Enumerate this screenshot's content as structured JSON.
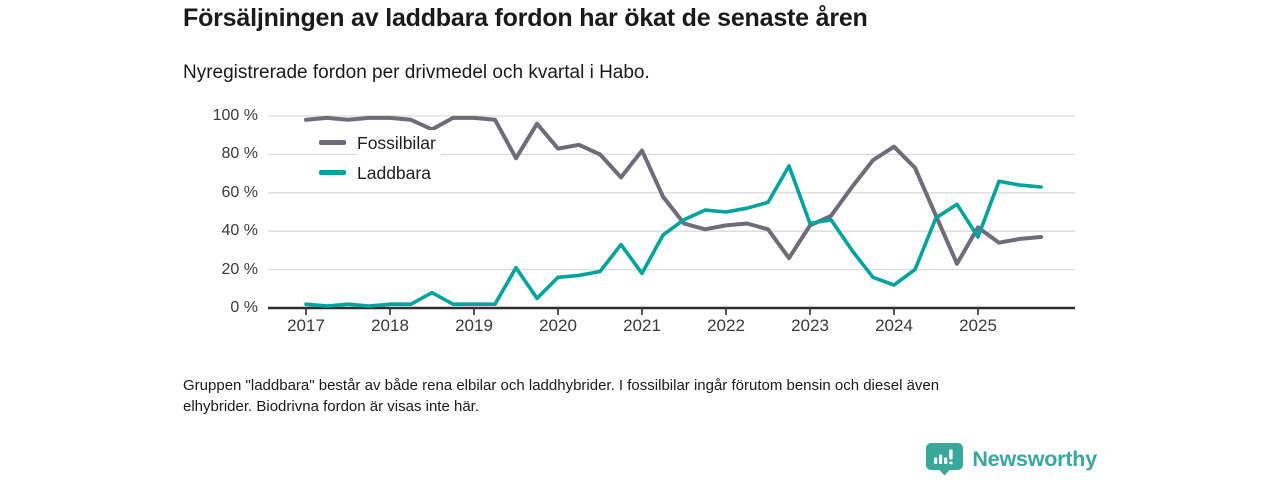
{
  "header": {
    "title": "Försäljningen av laddbara fordon har ökat de senaste åren",
    "subtitle": "Nyregistrerade fordon per drivmedel och kvartal i Habo."
  },
  "chart_data": {
    "type": "line",
    "x": [
      "2017-Q1",
      "2017-Q2",
      "2017-Q3",
      "2017-Q4",
      "2018-Q1",
      "2018-Q2",
      "2018-Q3",
      "2018-Q4",
      "2019-Q1",
      "2019-Q2",
      "2019-Q3",
      "2019-Q4",
      "2020-Q1",
      "2020-Q2",
      "2020-Q3",
      "2020-Q4",
      "2021-Q1",
      "2021-Q2",
      "2021-Q3",
      "2021-Q4",
      "2022-Q1",
      "2022-Q2",
      "2022-Q3",
      "2022-Q4",
      "2023-Q1",
      "2023-Q2",
      "2023-Q3",
      "2023-Q4",
      "2024-Q1",
      "2024-Q2",
      "2024-Q3",
      "2024-Q4",
      "2025-Q1",
      "2025-Q2",
      "2025-Q3",
      "2025-Q4"
    ],
    "series": [
      {
        "name": "Fossilbilar",
        "color": "#6f6b77",
        "values": [
          98,
          99,
          98,
          99,
          99,
          98,
          93,
          99,
          99,
          98,
          78,
          96,
          83,
          85,
          80,
          68,
          82,
          58,
          44,
          41,
          43,
          44,
          41,
          26,
          43,
          48,
          63,
          77,
          84,
          73,
          48,
          23,
          42,
          34,
          36,
          37
        ]
      },
      {
        "name": "Laddbara",
        "color": "#00a49c",
        "values": [
          2,
          1,
          2,
          1,
          2,
          2,
          8,
          2,
          2,
          2,
          21,
          5,
          16,
          17,
          19,
          33,
          18,
          38,
          46,
          51,
          50,
          52,
          55,
          74,
          44,
          46,
          30,
          16,
          12,
          20,
          47,
          54,
          37,
          66,
          64,
          63
        ]
      }
    ],
    "unit": "%",
    "ylim": [
      0,
      100
    ],
    "ytick_values": [
      100,
      80,
      60,
      40,
      20,
      0
    ],
    "ytick_labels": [
      "100 %",
      "80 %",
      "60 %",
      "40 %",
      "20 %",
      "0 %"
    ],
    "xtick_labels": [
      "2017",
      "2018",
      "2019",
      "2020",
      "2021",
      "2022",
      "2023",
      "2024",
      "2025"
    ],
    "grid": true,
    "legend_position": "inside-top-left",
    "axis_color": "#2f2f2f",
    "grid_color": "#dcdcdc"
  },
  "footnote": {
    "line1": "Gruppen \"laddbara\" består av både rena elbilar och laddhybrider. I fossilbilar ingår förutom bensin och diesel även",
    "line2": "elhybrider. Biodrivna fordon är visas inte här."
  },
  "logo": {
    "brand": "Newsworthy",
    "color": "#3aa79d",
    "icon": "bar-chart-pin-icon"
  }
}
